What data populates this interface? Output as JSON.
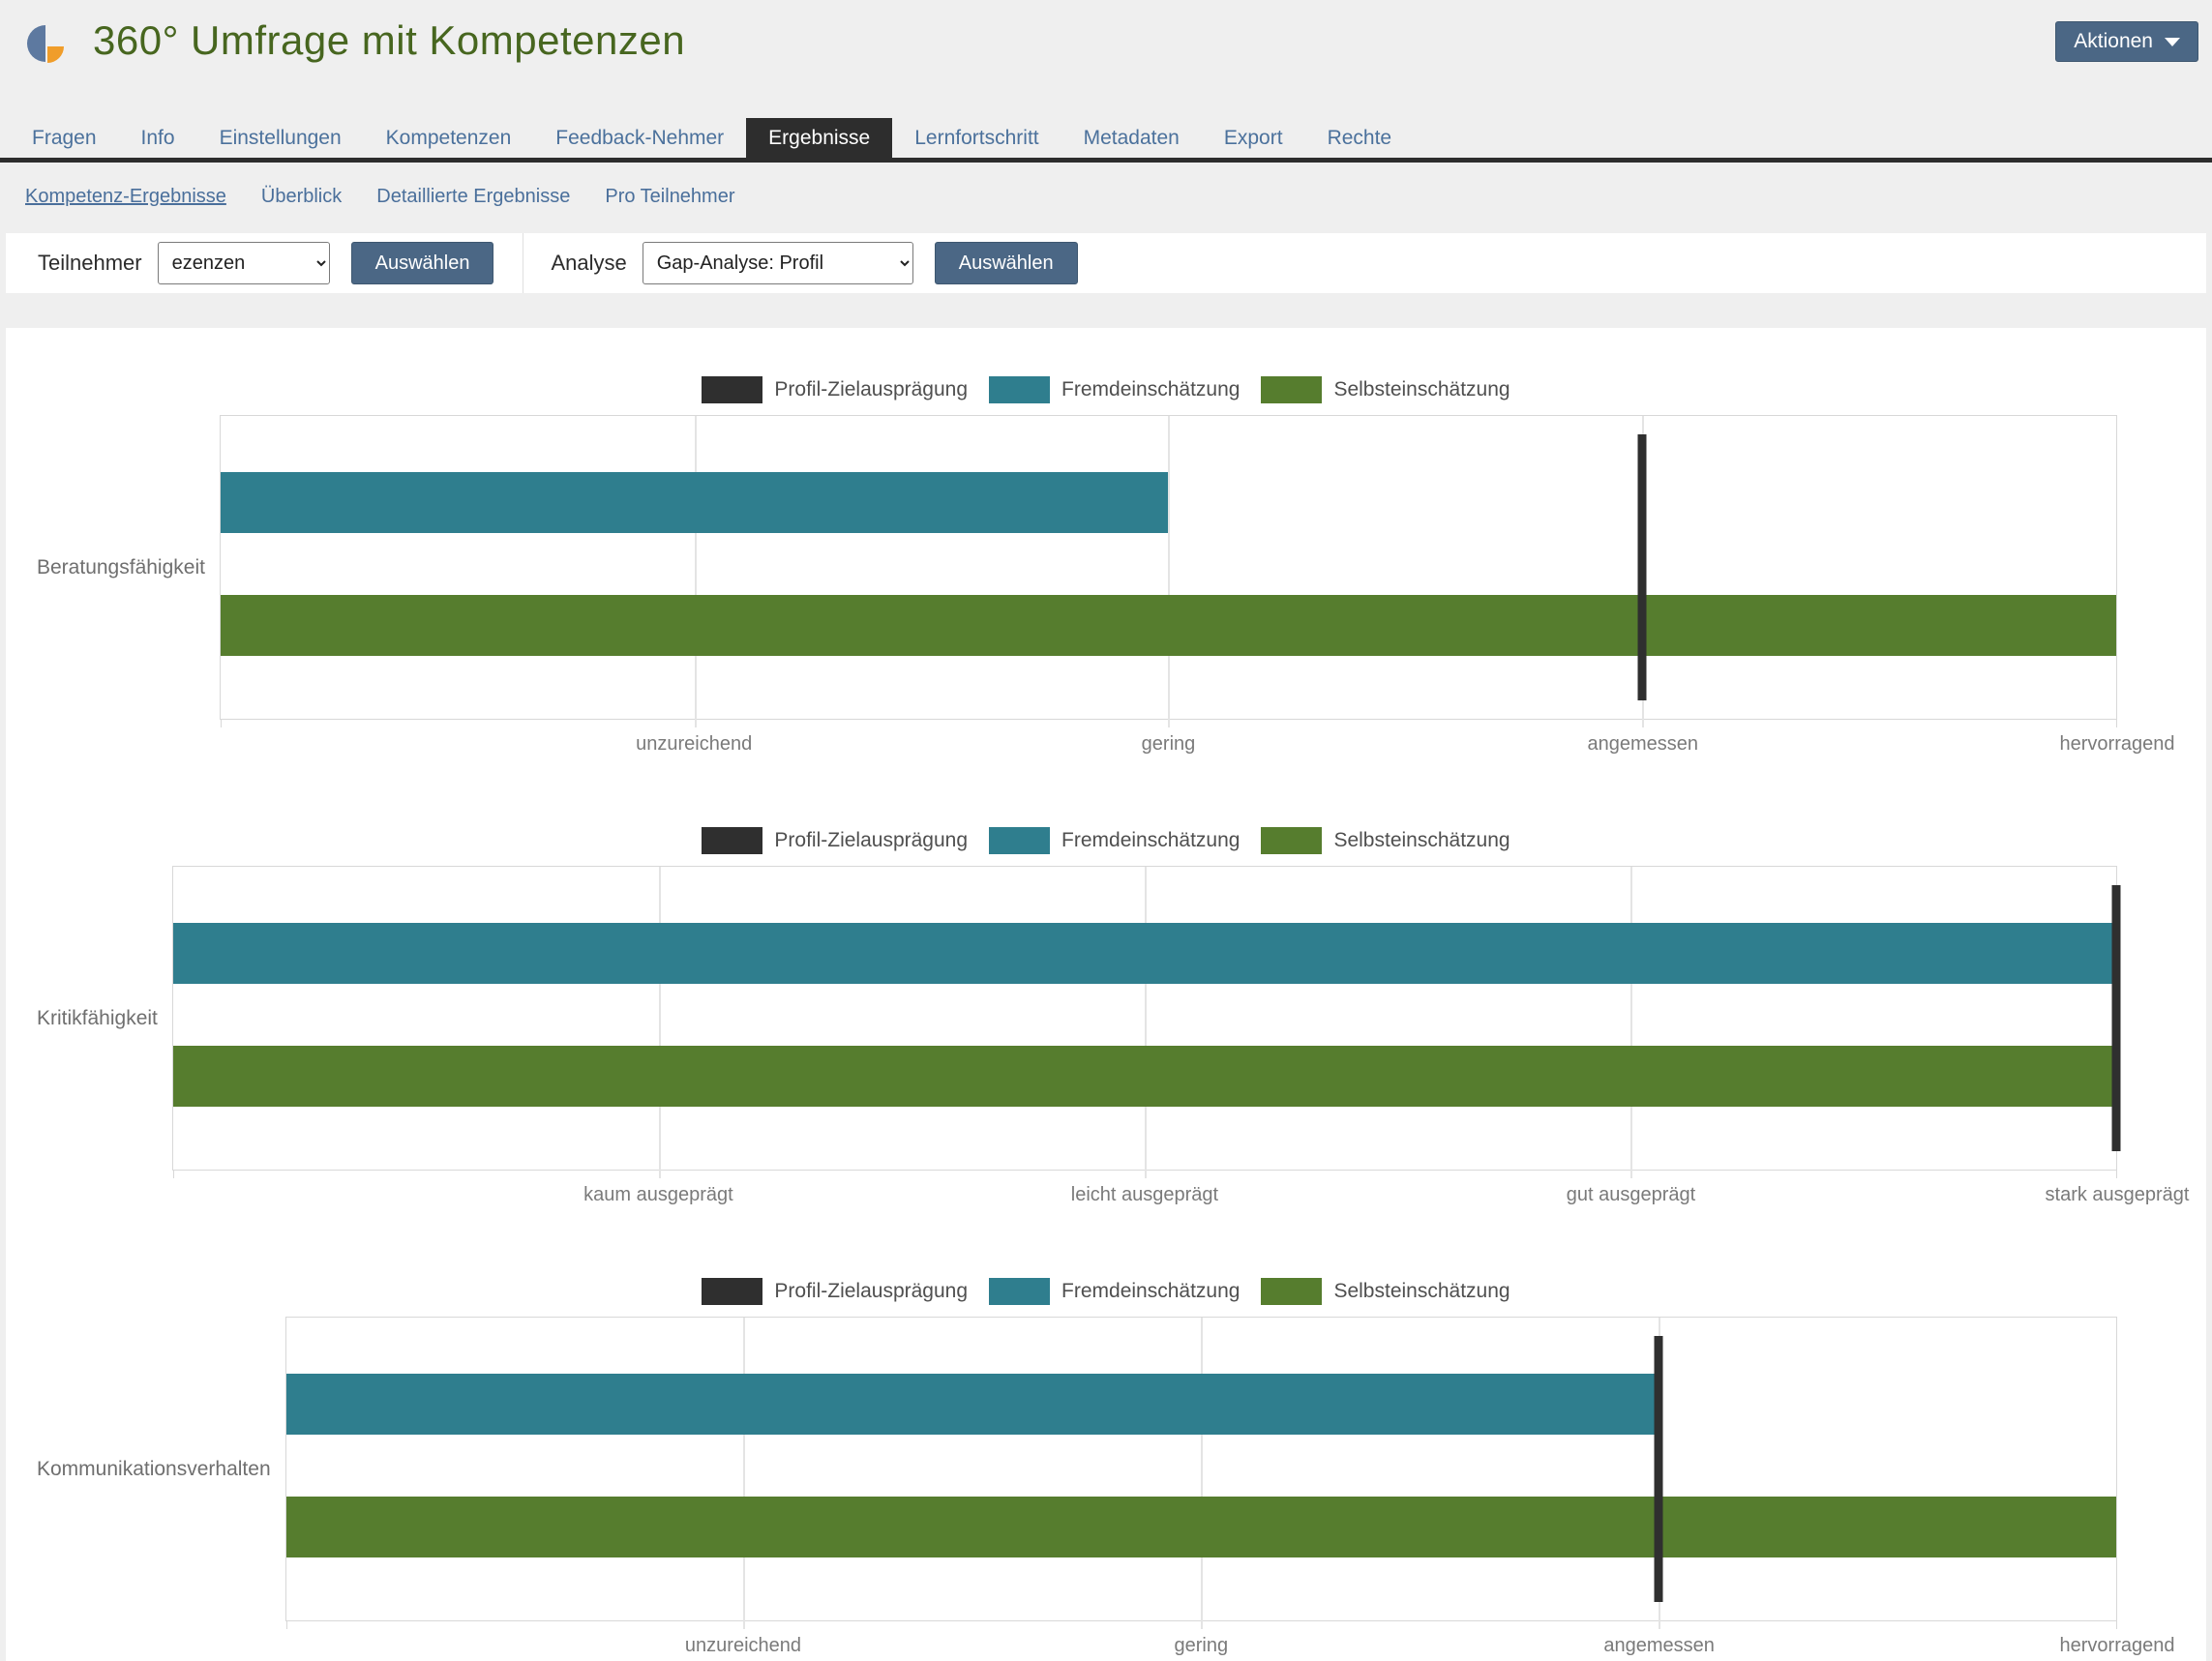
{
  "header": {
    "title": "360° Umfrage mit Kompetenzen",
    "actions_button": "Aktionen"
  },
  "tabs": {
    "items": [
      {
        "label": "Fragen"
      },
      {
        "label": "Info"
      },
      {
        "label": "Einstellungen"
      },
      {
        "label": "Kompetenzen"
      },
      {
        "label": "Feedback-Nehmer"
      },
      {
        "label": "Ergebnisse",
        "active": true
      },
      {
        "label": "Lernfortschritt"
      },
      {
        "label": "Metadaten"
      },
      {
        "label": "Export"
      },
      {
        "label": "Rechte"
      }
    ]
  },
  "subtabs": {
    "items": [
      {
        "label": "Kompetenz-Ergebnisse",
        "active": true
      },
      {
        "label": "Überblick"
      },
      {
        "label": "Detaillierte Ergebnisse"
      },
      {
        "label": "Pro Teilnehmer"
      }
    ]
  },
  "filters": {
    "teilnehmer": {
      "label": "Teilnehmer",
      "value": "ezenzen",
      "button": "Auswählen"
    },
    "analyse": {
      "label": "Analyse",
      "value": "Gap-Analyse: Profil",
      "button": "Auswählen"
    }
  },
  "colors": {
    "accent_slate": "#4b6785",
    "tab_blue": "#4b719c",
    "active_tab_bg": "#2d2d2d",
    "title_green": "#47661f",
    "target_dark": "#2f2f2f",
    "fremd_teal": "#2f7e8e",
    "selbst_green": "#567d2e"
  },
  "chart_data": [
    {
      "type": "bar",
      "orientation": "horizontal",
      "category": "Beratungsfähigkeit",
      "xlim": [
        0,
        4
      ],
      "scale_labels": [
        "unzureichend",
        "gering",
        "angemessen",
        "hervorragend"
      ],
      "grid": true,
      "legend_position": "top-center",
      "series": [
        {
          "name": "Profil-Zielausprägung",
          "role": "target-line",
          "value": 3,
          "color": "#2f2f2f"
        },
        {
          "name": "Fremdeinschätzung",
          "role": "bar",
          "value": 2,
          "color": "#2f7e8e"
        },
        {
          "name": "Selbsteinschätzung",
          "role": "bar",
          "value": 4,
          "color": "#567d2e"
        }
      ]
    },
    {
      "type": "bar",
      "orientation": "horizontal",
      "category": "Kritikfähigkeit",
      "xlim": [
        0,
        4
      ],
      "scale_labels": [
        "kaum ausgeprägt",
        "leicht ausgeprägt",
        "gut ausgeprägt",
        "stark ausgeprägt"
      ],
      "grid": true,
      "legend_position": "top-center",
      "series": [
        {
          "name": "Profil-Zielausprägung",
          "role": "target-line",
          "value": 4,
          "color": "#2f2f2f"
        },
        {
          "name": "Fremdeinschätzung",
          "role": "bar",
          "value": 4,
          "color": "#2f7e8e"
        },
        {
          "name": "Selbsteinschätzung",
          "role": "bar",
          "value": 4,
          "color": "#567d2e"
        }
      ]
    },
    {
      "type": "bar",
      "orientation": "horizontal",
      "category": "Kommunikationsverhalten",
      "xlim": [
        0,
        4
      ],
      "scale_labels": [
        "unzureichend",
        "gering",
        "angemessen",
        "hervorragend"
      ],
      "grid": true,
      "legend_position": "top-center",
      "series": [
        {
          "name": "Profil-Zielausprägung",
          "role": "target-line",
          "value": 3,
          "color": "#2f2f2f"
        },
        {
          "name": "Fremdeinschätzung",
          "role": "bar",
          "value": 3,
          "color": "#2f7e8e"
        },
        {
          "name": "Selbsteinschätzung",
          "role": "bar",
          "value": 4,
          "color": "#567d2e"
        }
      ]
    }
  ]
}
